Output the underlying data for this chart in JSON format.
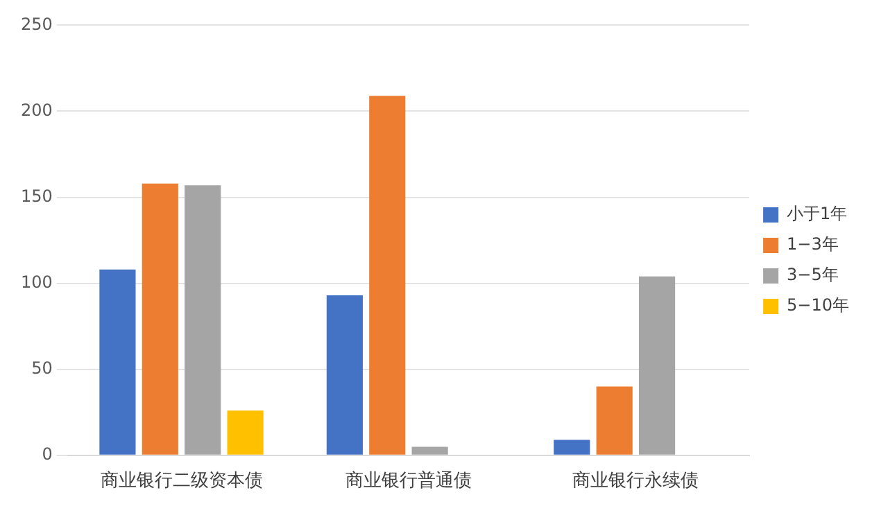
{
  "chart_data": {
    "type": "bar",
    "categories": [
      "商业银行二级资本债",
      "商业银行普通债",
      "商业银行永续债"
    ],
    "series": [
      {
        "name": "小于1年",
        "color": "#4472c4",
        "values": [
          108,
          93,
          9
        ]
      },
      {
        "name": "1−3年",
        "color": "#ed7d31",
        "values": [
          158,
          209,
          40
        ]
      },
      {
        "name": "3−5年",
        "color": "#a5a5a5",
        "values": [
          157,
          5,
          104
        ]
      },
      {
        "name": "5−10年",
        "color": "#ffc000",
        "values": [
          26,
          null,
          null
        ]
      }
    ],
    "ylim": [
      0,
      250
    ],
    "yticks": [
      0,
      50,
      100,
      150,
      200,
      250
    ],
    "grid": "y",
    "legend": "right"
  }
}
